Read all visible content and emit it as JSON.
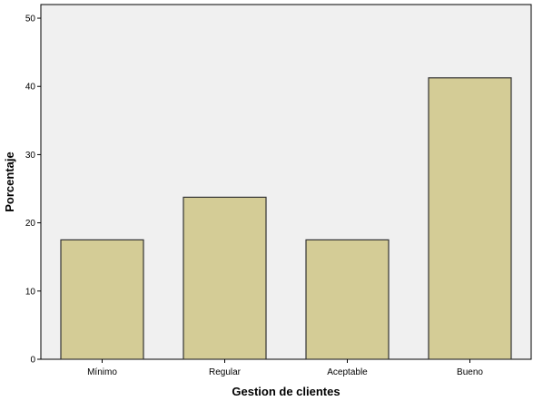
{
  "chart_data": {
    "type": "bar",
    "title": "",
    "xlabel": "Gestion de clientes",
    "ylabel": "Porcentaje",
    "categories": [
      "Mínimo",
      "Regular",
      "Aceptable",
      "Bueno"
    ],
    "values": [
      17.5,
      23.75,
      17.5,
      41.25
    ],
    "ylim": [
      0,
      52
    ],
    "yticks": [
      0,
      10,
      20,
      30,
      40,
      50
    ],
    "grid": false,
    "legend": "none",
    "colors": {
      "bar_fill": "#d4cc96",
      "bar_stroke": "#333333",
      "plot_background": "#f0f0f0",
      "axis": "#000000",
      "frame": "#000000"
    }
  }
}
